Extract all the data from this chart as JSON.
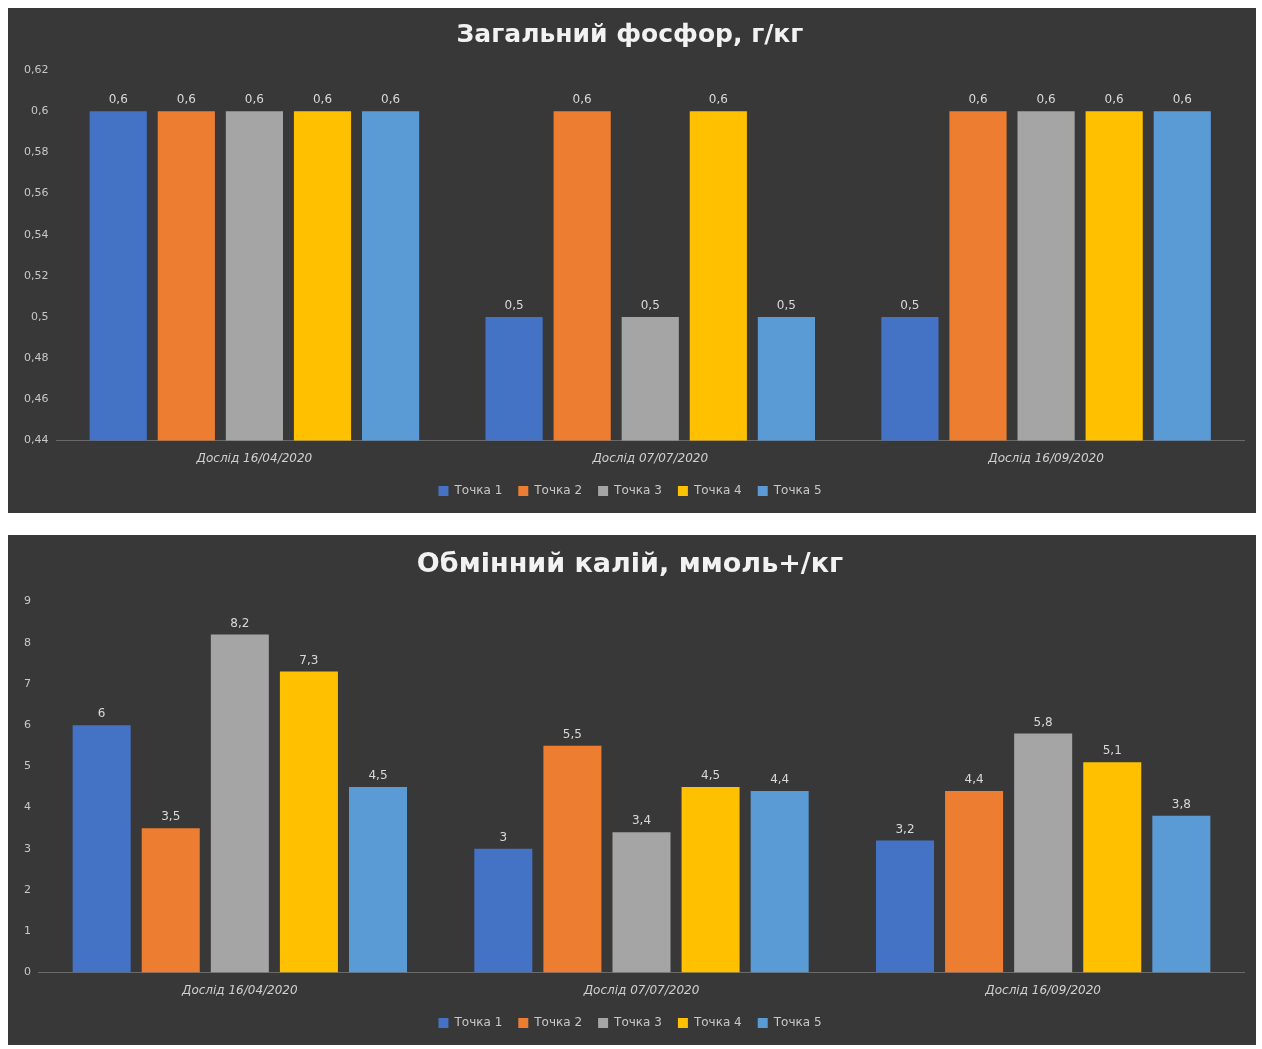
{
  "chart_data": [
    {
      "type": "bar",
      "title": "Загальний фосфор, г/кг",
      "categories": [
        "Дослід 16/04/2020",
        "Дослід 07/07/2020",
        "Дослід 16/09/2020"
      ],
      "series": [
        {
          "name": "Точка 1",
          "color": "#4472c4",
          "values": [
            0.6,
            0.5,
            0.5
          ],
          "value_labels": [
            "0,6",
            "0,5",
            "0,5"
          ]
        },
        {
          "name": "Точка 2",
          "color": "#ed7d31",
          "values": [
            0.6,
            0.6,
            0.6
          ],
          "value_labels": [
            "0,6",
            "0,6",
            "0,6"
          ]
        },
        {
          "name": "Точка 3",
          "color": "#a5a5a5",
          "values": [
            0.6,
            0.5,
            0.6
          ],
          "value_labels": [
            "0,6",
            "0,5",
            "0,6"
          ]
        },
        {
          "name": "Точка 4",
          "color": "#ffc000",
          "values": [
            0.6,
            0.6,
            0.6
          ],
          "value_labels": [
            "0,6",
            "0,6",
            "0,6"
          ]
        },
        {
          "name": "Точка 5",
          "color": "#5b9bd5",
          "values": [
            0.6,
            0.5,
            0.6
          ],
          "value_labels": [
            "0,6",
            "0,5",
            "0,6"
          ]
        }
      ],
      "ylim": [
        0.44,
        0.62
      ],
      "yticks": [
        {
          "value": 0.44,
          "label": "0,44"
        },
        {
          "value": 0.46,
          "label": "0,46"
        },
        {
          "value": 0.48,
          "label": "0,48"
        },
        {
          "value": 0.5,
          "label": "0,5"
        },
        {
          "value": 0.52,
          "label": "0,52"
        },
        {
          "value": 0.54,
          "label": "0,54"
        },
        {
          "value": 0.56,
          "label": "0,56"
        },
        {
          "value": 0.58,
          "label": "0,58"
        },
        {
          "value": 0.6,
          "label": "0,6"
        },
        {
          "value": 0.62,
          "label": "0,62"
        }
      ],
      "legend": "bottom"
    },
    {
      "type": "bar",
      "title": "Обмінний калій, ммоль+/кг",
      "categories": [
        "Дослід 16/04/2020",
        "Дослід 07/07/2020",
        "Дослід 16/09/2020"
      ],
      "series": [
        {
          "name": "Точка 1",
          "color": "#4472c4",
          "values": [
            6,
            3,
            3.2
          ],
          "value_labels": [
            "6",
            "3",
            "3,2"
          ]
        },
        {
          "name": "Точка 2",
          "color": "#ed7d31",
          "values": [
            3.5,
            5.5,
            4.4
          ],
          "value_labels": [
            "3,5",
            "5,5",
            "4,4"
          ]
        },
        {
          "name": "Точка 3",
          "color": "#a5a5a5",
          "values": [
            8.2,
            3.4,
            5.8
          ],
          "value_labels": [
            "8,2",
            "3,4",
            "5,8"
          ]
        },
        {
          "name": "Точка 4",
          "color": "#ffc000",
          "values": [
            7.3,
            4.5,
            5.1
          ],
          "value_labels": [
            "7,3",
            "4,5",
            "5,1"
          ]
        },
        {
          "name": "Точка 5",
          "color": "#5b9bd5",
          "values": [
            4.5,
            4.4,
            3.8
          ],
          "value_labels": [
            "4,5",
            "4,4",
            "3,8"
          ]
        }
      ],
      "ylim": [
        0,
        9
      ],
      "yticks": [
        0,
        1,
        2,
        3,
        4,
        5,
        6,
        7,
        8,
        9
      ],
      "legend": "bottom"
    }
  ]
}
